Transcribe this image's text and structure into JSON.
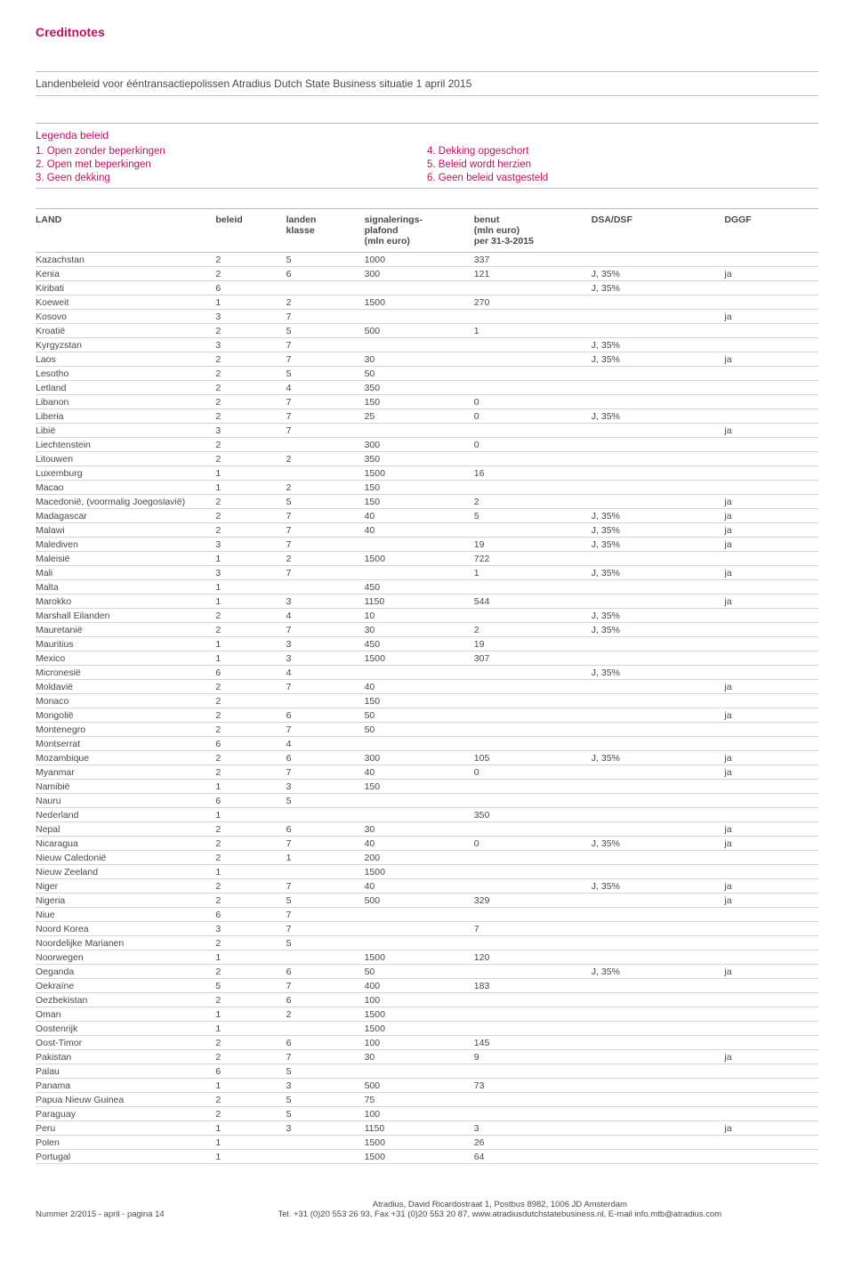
{
  "section_label": "Creditnotes",
  "doc_title": "Landenbeleid voor ééntransactiepolissen Atradius Dutch State Business situatie 1 april 2015",
  "legend": {
    "title": "Legenda beleid",
    "items_left": [
      "1. Open zonder beperkingen",
      "2. Open met beperkingen",
      "3. Geen dekking"
    ],
    "items_right": [
      "4. Dekking opgeschort",
      "5. Beleid wordt herzien",
      "6. Geen beleid vastgesteld"
    ]
  },
  "table": {
    "columns": [
      {
        "key": "land",
        "label": "LAND",
        "width": "23%"
      },
      {
        "key": "beleid",
        "label": "beleid",
        "width": "9%"
      },
      {
        "key": "landen",
        "label": "landen\nklasse",
        "width": "10%"
      },
      {
        "key": "plafond",
        "label": "signalerings-\nplafond\n(mln euro)",
        "width": "14%"
      },
      {
        "key": "benut",
        "label": "benut\n(mln euro)\nper 31-3-2015",
        "width": "15%"
      },
      {
        "key": "dsa",
        "label": "DSA/DSF",
        "width": "17%"
      },
      {
        "key": "dggf",
        "label": "DGGF",
        "width": "12%"
      }
    ],
    "rows": [
      [
        "Kazachstan",
        "2",
        "5",
        "1000",
        "337",
        "",
        ""
      ],
      [
        "Kenia",
        "2",
        "6",
        "300",
        "121",
        "J, 35%",
        "ja"
      ],
      [
        "Kiribati",
        "6",
        "",
        "",
        "",
        "J, 35%",
        ""
      ],
      [
        "Koeweit",
        "1",
        "2",
        "1500",
        "270",
        "",
        ""
      ],
      [
        "Kosovo",
        "3",
        "7",
        "",
        "",
        "",
        "ja"
      ],
      [
        "Kroatië",
        "2",
        "5",
        "500",
        "1",
        "",
        ""
      ],
      [
        "Kyrgyzstan",
        "3",
        "7",
        "",
        "",
        "J, 35%",
        ""
      ],
      [
        "Laos",
        "2",
        "7",
        "30",
        "",
        "J, 35%",
        "ja"
      ],
      [
        "Lesotho",
        "2",
        "5",
        "50",
        "",
        "",
        ""
      ],
      [
        "Letland",
        "2",
        "4",
        "350",
        "",
        "",
        ""
      ],
      [
        "Libanon",
        "2",
        "7",
        "150",
        "0",
        "",
        ""
      ],
      [
        "Liberia",
        "2",
        "7",
        "25",
        "0",
        "J, 35%",
        ""
      ],
      [
        "Libië",
        "3",
        "7",
        "",
        "",
        "",
        "ja"
      ],
      [
        "Liechtenstein",
        "2",
        "",
        "300",
        "0",
        "",
        ""
      ],
      [
        "Litouwen",
        "2",
        "2",
        "350",
        "",
        "",
        ""
      ],
      [
        "Luxemburg",
        "1",
        "",
        "1500",
        "16",
        "",
        ""
      ],
      [
        "Macao",
        "1",
        "2",
        "150",
        "",
        "",
        ""
      ],
      [
        "Macedonië, (voormalig Joegoslavië)",
        "2",
        "5",
        "150",
        "2",
        "",
        "ja"
      ],
      [
        "Madagascar",
        "2",
        "7",
        "40",
        "5",
        "J, 35%",
        "ja"
      ],
      [
        "Malawi",
        "2",
        "7",
        "40",
        "",
        "J, 35%",
        "ja"
      ],
      [
        "Malediven",
        "3",
        "7",
        "",
        "19",
        "J, 35%",
        "ja"
      ],
      [
        "Maleisië",
        "1",
        "2",
        "1500",
        "722",
        "",
        ""
      ],
      [
        "Mali",
        "3",
        "7",
        "",
        "1",
        "J, 35%",
        "ja"
      ],
      [
        "Malta",
        "1",
        "",
        "450",
        "",
        "",
        ""
      ],
      [
        "Marokko",
        "1",
        "3",
        "1150",
        "544",
        "",
        "ja"
      ],
      [
        "Marshall Eilanden",
        "2",
        "4",
        "10",
        "",
        "J, 35%",
        ""
      ],
      [
        "Mauretanië",
        "2",
        "7",
        "30",
        "2",
        "J, 35%",
        ""
      ],
      [
        "Mauritius",
        "1",
        "3",
        "450",
        "19",
        "",
        ""
      ],
      [
        "Mexico",
        "1",
        "3",
        "1500",
        "307",
        "",
        ""
      ],
      [
        "Micronesië",
        "6",
        "4",
        "",
        "",
        "J, 35%",
        ""
      ],
      [
        "Moldavië",
        "2",
        "7",
        "40",
        "",
        "",
        "ja"
      ],
      [
        "Monaco",
        "2",
        "",
        "150",
        "",
        "",
        ""
      ],
      [
        "Mongolië",
        "2",
        "6",
        "50",
        "",
        "",
        "ja"
      ],
      [
        "Montenegro",
        "2",
        "7",
        "50",
        "",
        "",
        ""
      ],
      [
        "Montserrat",
        "6",
        "4",
        "",
        "",
        "",
        ""
      ],
      [
        "Mozambique",
        "2",
        "6",
        "300",
        "105",
        "J, 35%",
        "ja"
      ],
      [
        "Myanmar",
        "2",
        "7",
        "40",
        "0",
        "",
        "ja"
      ],
      [
        "Namibië",
        "1",
        "3",
        "150",
        "",
        "",
        ""
      ],
      [
        "Nauru",
        "6",
        "5",
        "",
        "",
        "",
        ""
      ],
      [
        "Nederland",
        "1",
        "",
        "",
        "350",
        "",
        ""
      ],
      [
        "Nepal",
        "2",
        "6",
        "30",
        "",
        "",
        "ja"
      ],
      [
        "Nicaragua",
        "2",
        "7",
        "40",
        "0",
        "J, 35%",
        "ja"
      ],
      [
        "Nieuw Caledonië",
        "2",
        "1",
        "200",
        "",
        "",
        ""
      ],
      [
        "Nieuw Zeeland",
        "1",
        "",
        "1500",
        "",
        "",
        ""
      ],
      [
        "Niger",
        "2",
        "7",
        "40",
        "",
        "J, 35%",
        "ja"
      ],
      [
        "Nigeria",
        "2",
        "5",
        "500",
        "329",
        "",
        "ja"
      ],
      [
        "Niue",
        "6",
        "7",
        "",
        "",
        "",
        ""
      ],
      [
        "Noord Korea",
        "3",
        "7",
        "",
        "7",
        "",
        ""
      ],
      [
        "Noordelijke Marianen",
        "2",
        "5",
        "",
        "",
        "",
        ""
      ],
      [
        "Noorwegen",
        "1",
        "",
        "1500",
        "120",
        "",
        ""
      ],
      [
        "Oeganda",
        "2",
        "6",
        "50",
        "",
        "J, 35%",
        "ja"
      ],
      [
        "Oekraïne",
        "5",
        "7",
        "400",
        "183",
        "",
        ""
      ],
      [
        "Oezbekistan",
        "2",
        "6",
        "100",
        "",
        "",
        ""
      ],
      [
        "Oman",
        "1",
        "2",
        "1500",
        "",
        "",
        ""
      ],
      [
        "Oostenrijk",
        "1",
        "",
        "1500",
        "",
        "",
        ""
      ],
      [
        "Oost-Timor",
        "2",
        "6",
        "100",
        "145",
        "",
        ""
      ],
      [
        "Pakistan",
        "2",
        "7",
        "30",
        "9",
        "",
        "ja"
      ],
      [
        "Palau",
        "6",
        "5",
        "",
        "",
        "",
        ""
      ],
      [
        "Panama",
        "1",
        "3",
        "500",
        "73",
        "",
        ""
      ],
      [
        "Papua Nieuw Guinea",
        "2",
        "5",
        "75",
        "",
        "",
        ""
      ],
      [
        "Paraguay",
        "2",
        "5",
        "100",
        "",
        "",
        ""
      ],
      [
        "Peru",
        "1",
        "3",
        "1150",
        "3",
        "",
        "ja"
      ],
      [
        "Polen",
        "1",
        "",
        "1500",
        "26",
        "",
        ""
      ],
      [
        "Portugal",
        "1",
        "",
        "1500",
        "64",
        "",
        ""
      ]
    ]
  },
  "footer": {
    "page": "Nummer 2/2015 - april - pagina 14",
    "addr1": "Atradius, David Ricardostraat 1, Postbus 8982, 1006 JD Amsterdam",
    "addr2": "Tel. +31 (0)20 553 26 93, Fax +31 (0)20 553 20 87, www.atradiusdutchstatebusiness.nl, E-mail info.mtb@atradius.com"
  }
}
